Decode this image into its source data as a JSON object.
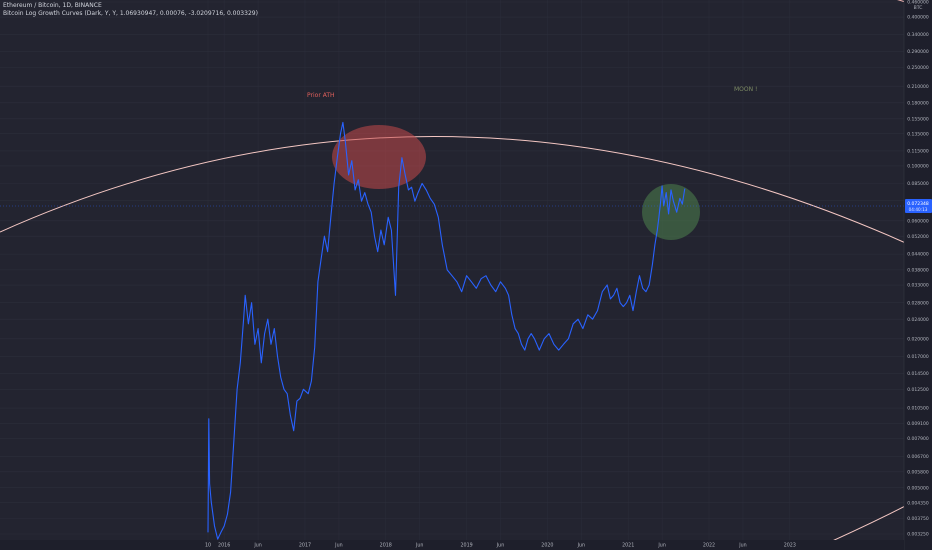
{
  "header": {
    "symbol_line": "Ethereum / Bitcoin, 1D, BINANCE",
    "indicator_line": "Bitcoin Log Growth Curves (Dark, Y, Y, 1.06930947, 0.00076, -3.0209716, 0.003329)"
  },
  "colors": {
    "background": "#1e1f2b",
    "price_line": "#2962ff",
    "curve_upper": "#f2b6b4",
    "curve_lower": "#f4c7c3",
    "red_highlight": "#c4494a",
    "green_highlight": "#4a7a4b",
    "price_tag": "#2962ff",
    "axis_text": "#b2b5be"
  },
  "price_scale": {
    "currency": "BTC",
    "current_price": "0.072348",
    "countdown": "04:40:13"
  },
  "annotations": {
    "prior_ath": "Prior ATH",
    "moon": "MOON !"
  },
  "chart_data": {
    "type": "line",
    "title": "Ethereum / Bitcoin, 1D, BINANCE",
    "yscale": "log",
    "ylim": [
      0.0033,
      0.46
    ],
    "y_ticks": [
      "0.460000",
      "0.400000",
      "0.340000",
      "0.290000",
      "0.250000",
      "0.210000",
      "0.180000",
      "0.155000",
      "0.135000",
      "0.115000",
      "0.100000",
      "0.085000",
      "0.072348",
      "0.060000",
      "0.052000",
      "0.044000",
      "0.038000",
      "0.033000",
      "0.028000",
      "0.024000",
      "0.020000",
      "0.017000",
      "0.014500",
      "0.012500",
      "0.010500",
      "0.009100",
      "0.007900",
      "0.006700",
      "0.005800",
      "0.005000",
      "0.004350",
      "0.003750",
      "0.003250"
    ],
    "x_ticks": [
      "10",
      "2016",
      "Jun",
      "2017",
      "Jun",
      "2018",
      "Jun",
      "2019",
      "Jun",
      "2020",
      "Jun",
      "2021",
      "Jun",
      "2022",
      "Jun",
      "2023"
    ],
    "series": [
      {
        "x": [
          2015.8,
          2015.81,
          2015.82,
          2015.84,
          2015.88,
          2015.92,
          2015.96,
          2016.0,
          2016.04,
          2016.08,
          2016.12,
          2016.16,
          2016.2,
          2016.24,
          2016.26,
          2016.3,
          2016.34,
          2016.38,
          2016.42,
          2016.46,
          2016.5,
          2016.54,
          2016.58,
          2016.62,
          2016.66,
          2016.7,
          2016.74,
          2016.78,
          2016.82,
          2016.86,
          2016.9,
          2016.94,
          2016.98,
          2017.04,
          2017.08,
          2017.12,
          2017.16,
          2017.2,
          2017.24,
          2017.28,
          2017.32,
          2017.36,
          2017.4,
          2017.44,
          2017.47,
          2017.5,
          2017.54,
          2017.58,
          2017.62,
          2017.66,
          2017.7,
          2017.74,
          2017.78,
          2017.82,
          2017.86,
          2017.9,
          2017.94,
          2017.98,
          2018.03,
          2018.07,
          2018.12,
          2018.16,
          2018.2,
          2018.24,
          2018.28,
          2018.32,
          2018.36,
          2018.4,
          2018.45,
          2018.5,
          2018.55,
          2018.6,
          2018.65,
          2018.7,
          2018.76,
          2018.82,
          2018.88,
          2018.94,
          2019.0,
          2019.06,
          2019.12,
          2019.18,
          2019.24,
          2019.3,
          2019.36,
          2019.42,
          2019.48,
          2019.52,
          2019.56,
          2019.6,
          2019.64,
          2019.68,
          2019.72,
          2019.76,
          2019.8,
          2019.84,
          2019.9,
          2019.96,
          2020.02,
          2020.08,
          2020.14,
          2020.2,
          2020.26,
          2020.32,
          2020.38,
          2020.44,
          2020.5,
          2020.56,
          2020.62,
          2020.68,
          2020.74,
          2020.78,
          2020.82,
          2020.86,
          2020.9,
          2020.94,
          2020.98,
          2021.02,
          2021.06,
          2021.1,
          2021.14,
          2021.18,
          2021.22,
          2021.26,
          2021.3,
          2021.33,
          2021.36,
          2021.38,
          2021.4,
          2021.42,
          2021.44,
          2021.47,
          2021.5,
          2021.53,
          2021.56,
          2021.6,
          2021.64,
          2021.67,
          2021.7
        ],
        "y": [
          0.0033,
          0.0095,
          0.0052,
          0.0044,
          0.0035,
          0.0031,
          0.0033,
          0.0035,
          0.0039,
          0.0048,
          0.0078,
          0.0125,
          0.016,
          0.024,
          0.03,
          0.023,
          0.028,
          0.019,
          0.022,
          0.016,
          0.021,
          0.024,
          0.019,
          0.022,
          0.017,
          0.014,
          0.0125,
          0.012,
          0.0098,
          0.0085,
          0.0112,
          0.0115,
          0.0125,
          0.012,
          0.0135,
          0.0185,
          0.034,
          0.042,
          0.052,
          0.045,
          0.062,
          0.085,
          0.108,
          0.135,
          0.15,
          0.125,
          0.092,
          0.105,
          0.08,
          0.088,
          0.072,
          0.078,
          0.07,
          0.065,
          0.052,
          0.045,
          0.055,
          0.048,
          0.062,
          0.055,
          0.03,
          0.082,
          0.108,
          0.092,
          0.08,
          0.082,
          0.072,
          0.078,
          0.085,
          0.08,
          0.074,
          0.07,
          0.062,
          0.048,
          0.038,
          0.036,
          0.034,
          0.031,
          0.036,
          0.034,
          0.032,
          0.035,
          0.036,
          0.033,
          0.031,
          0.034,
          0.032,
          0.03,
          0.025,
          0.022,
          0.021,
          0.019,
          0.018,
          0.02,
          0.021,
          0.02,
          0.018,
          0.02,
          0.021,
          0.019,
          0.018,
          0.019,
          0.02,
          0.023,
          0.024,
          0.022,
          0.025,
          0.024,
          0.026,
          0.031,
          0.033,
          0.029,
          0.03,
          0.032,
          0.028,
          0.027,
          0.028,
          0.03,
          0.026,
          0.031,
          0.036,
          0.032,
          0.031,
          0.033,
          0.04,
          0.048,
          0.055,
          0.062,
          0.071,
          0.083,
          0.069,
          0.078,
          0.064,
          0.08,
          0.072,
          0.065,
          0.074,
          0.07,
          0.081
        ]
      }
    ]
  }
}
